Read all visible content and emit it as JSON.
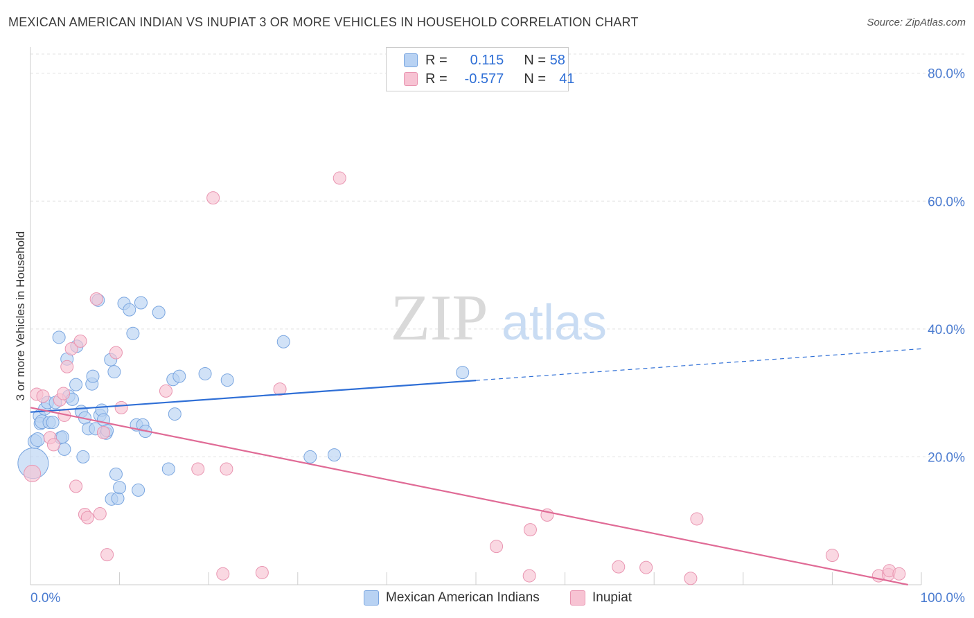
{
  "title": "MEXICAN AMERICAN INDIAN VS INUPIAT 3 OR MORE VEHICLES IN HOUSEHOLD CORRELATION CHART",
  "source": "Source: ZipAtlas.com",
  "watermark": {
    "zip": "ZIP",
    "atlas": "atlas"
  },
  "legend": {
    "r_label": "R =",
    "n_label": "N =",
    "series1": {
      "r": "0.115",
      "n": "58"
    },
    "series2": {
      "r": "-0.577",
      "n": "41"
    }
  },
  "bottom_legend": {
    "series1": "Mexican American Indians",
    "series2": "Inupiat"
  },
  "colors": {
    "blue_fill": "#b8d2f3",
    "blue_stroke": "#7aa6e0",
    "blue_line": "#2f6fd6",
    "pink_fill": "#f7c3d3",
    "pink_stroke": "#e995b1",
    "pink_line": "#e06b96",
    "axis_text": "#4a7bd0"
  },
  "chart_data": {
    "type": "scatter",
    "title": "MEXICAN AMERICAN INDIAN VS INUPIAT 3 OR MORE VEHICLES IN HOUSEHOLD CORRELATION CHART",
    "xlabel": "",
    "ylabel": "3 or more Vehicles in Household",
    "xlim": [
      0,
      100
    ],
    "ylim": [
      0,
      83
    ],
    "x_tick_labels": {
      "left": "0.0%",
      "right": "100.0%"
    },
    "y_ticks": [
      20,
      40,
      60,
      80
    ],
    "y_tick_labels": [
      "20.0%",
      "40.0%",
      "60.0%",
      "80.0%"
    ],
    "grid": true,
    "series": [
      {
        "name": "Mexican American Indians",
        "r": 0.115,
        "n": 58,
        "trend": {
          "x0": 0,
          "y0": 27.0,
          "x1": 100,
          "y1": 36.9,
          "solid_until": 50
        },
        "points": [
          [
            0.3,
            19,
            22
          ],
          [
            0.5,
            22.4,
            10
          ],
          [
            0.8,
            22.7,
            10
          ],
          [
            1.0,
            26.4,
            9
          ],
          [
            1.1,
            25.2,
            9
          ],
          [
            1.3,
            25.5,
            10
          ],
          [
            1.6,
            27.5,
            9
          ],
          [
            1.9,
            28.5,
            9
          ],
          [
            2.1,
            25.4,
            9
          ],
          [
            2.5,
            25.4,
            9
          ],
          [
            2.8,
            28.5,
            9
          ],
          [
            3.2,
            38.7,
            9
          ],
          [
            3.4,
            23.0,
            9
          ],
          [
            3.6,
            23.1,
            9
          ],
          [
            3.8,
            21.2,
            9
          ],
          [
            4.1,
            35.3,
            9
          ],
          [
            4.3,
            29.5,
            9
          ],
          [
            4.7,
            29.0,
            9
          ],
          [
            5.1,
            31.3,
            9
          ],
          [
            5.2,
            37.3,
            9
          ],
          [
            5.7,
            27.1,
            9
          ],
          [
            5.9,
            20.0,
            9
          ],
          [
            6.1,
            26.1,
            9
          ],
          [
            6.5,
            24.4,
            9
          ],
          [
            6.9,
            31.4,
            9
          ],
          [
            7.0,
            32.6,
            9
          ],
          [
            7.3,
            24.4,
            9
          ],
          [
            7.6,
            44.5,
            9
          ],
          [
            7.8,
            26.5,
            9
          ],
          [
            8.0,
            27.3,
            9
          ],
          [
            8.2,
            25.8,
            9
          ],
          [
            8.5,
            23.7,
            9
          ],
          [
            8.6,
            24.1,
            9
          ],
          [
            9.0,
            35.2,
            9
          ],
          [
            9.1,
            13.4,
            9
          ],
          [
            9.4,
            33.3,
            9
          ],
          [
            9.6,
            17.3,
            9
          ],
          [
            9.8,
            13.5,
            9
          ],
          [
            10.0,
            15.2,
            9
          ],
          [
            10.5,
            44.0,
            9
          ],
          [
            11.1,
            43.0,
            9
          ],
          [
            11.5,
            39.3,
            9
          ],
          [
            11.9,
            25.0,
            9
          ],
          [
            12.1,
            14.8,
            9
          ],
          [
            12.4,
            44.1,
            9
          ],
          [
            12.6,
            25.0,
            9
          ],
          [
            12.9,
            24.0,
            9
          ],
          [
            14.4,
            42.6,
            9
          ],
          [
            15.5,
            18.1,
            9
          ],
          [
            16.0,
            32.1,
            9
          ],
          [
            16.2,
            26.7,
            9
          ],
          [
            16.7,
            32.6,
            9
          ],
          [
            19.6,
            33.0,
            9
          ],
          [
            22.1,
            32.0,
            9
          ],
          [
            28.4,
            38.0,
            9
          ],
          [
            31.4,
            20.0,
            9
          ],
          [
            34.1,
            20.3,
            9
          ],
          [
            48.5,
            33.2,
            9
          ]
        ]
      },
      {
        "name": "Inupiat",
        "r": -0.577,
        "n": 41,
        "trend": {
          "x0": 0,
          "y0": 27.7,
          "x1": 98.5,
          "y1": 0
        },
        "points": [
          [
            0.2,
            17.4,
            12
          ],
          [
            0.7,
            29.8,
            9
          ],
          [
            1.4,
            29.5,
            9
          ],
          [
            2.2,
            23.0,
            9
          ],
          [
            2.6,
            21.9,
            9
          ],
          [
            3.3,
            28.9,
            9
          ],
          [
            3.7,
            29.9,
            9
          ],
          [
            3.8,
            26.5,
            9
          ],
          [
            4.1,
            34.1,
            9
          ],
          [
            4.6,
            36.9,
            9
          ],
          [
            5.1,
            15.4,
            9
          ],
          [
            5.6,
            38.1,
            9
          ],
          [
            6.1,
            11.0,
            9
          ],
          [
            6.4,
            10.5,
            9
          ],
          [
            7.4,
            44.7,
            9
          ],
          [
            7.8,
            11.1,
            9
          ],
          [
            8.2,
            23.8,
            9
          ],
          [
            8.6,
            4.7,
            9
          ],
          [
            9.6,
            36.3,
            9
          ],
          [
            10.2,
            27.7,
            9
          ],
          [
            15.2,
            30.3,
            9
          ],
          [
            18.8,
            18.1,
            9
          ],
          [
            20.5,
            60.5,
            9
          ],
          [
            21.6,
            1.7,
            9
          ],
          [
            22.0,
            18.1,
            9
          ],
          [
            26.0,
            1.9,
            9
          ],
          [
            28.0,
            30.6,
            9
          ],
          [
            34.7,
            63.6,
            9
          ],
          [
            52.3,
            6.0,
            9
          ],
          [
            56.1,
            8.6,
            9
          ],
          [
            56.0,
            1.4,
            9
          ],
          [
            58.0,
            10.9,
            9
          ],
          [
            66.0,
            2.8,
            9
          ],
          [
            69.1,
            2.7,
            9
          ],
          [
            74.1,
            1.0,
            9
          ],
          [
            74.8,
            10.3,
            9
          ],
          [
            90.0,
            4.6,
            9
          ],
          [
            95.2,
            1.4,
            9
          ],
          [
            96.3,
            1.6,
            9
          ],
          [
            96.4,
            2.2,
            9
          ],
          [
            97.5,
            1.7,
            9
          ]
        ]
      }
    ]
  }
}
